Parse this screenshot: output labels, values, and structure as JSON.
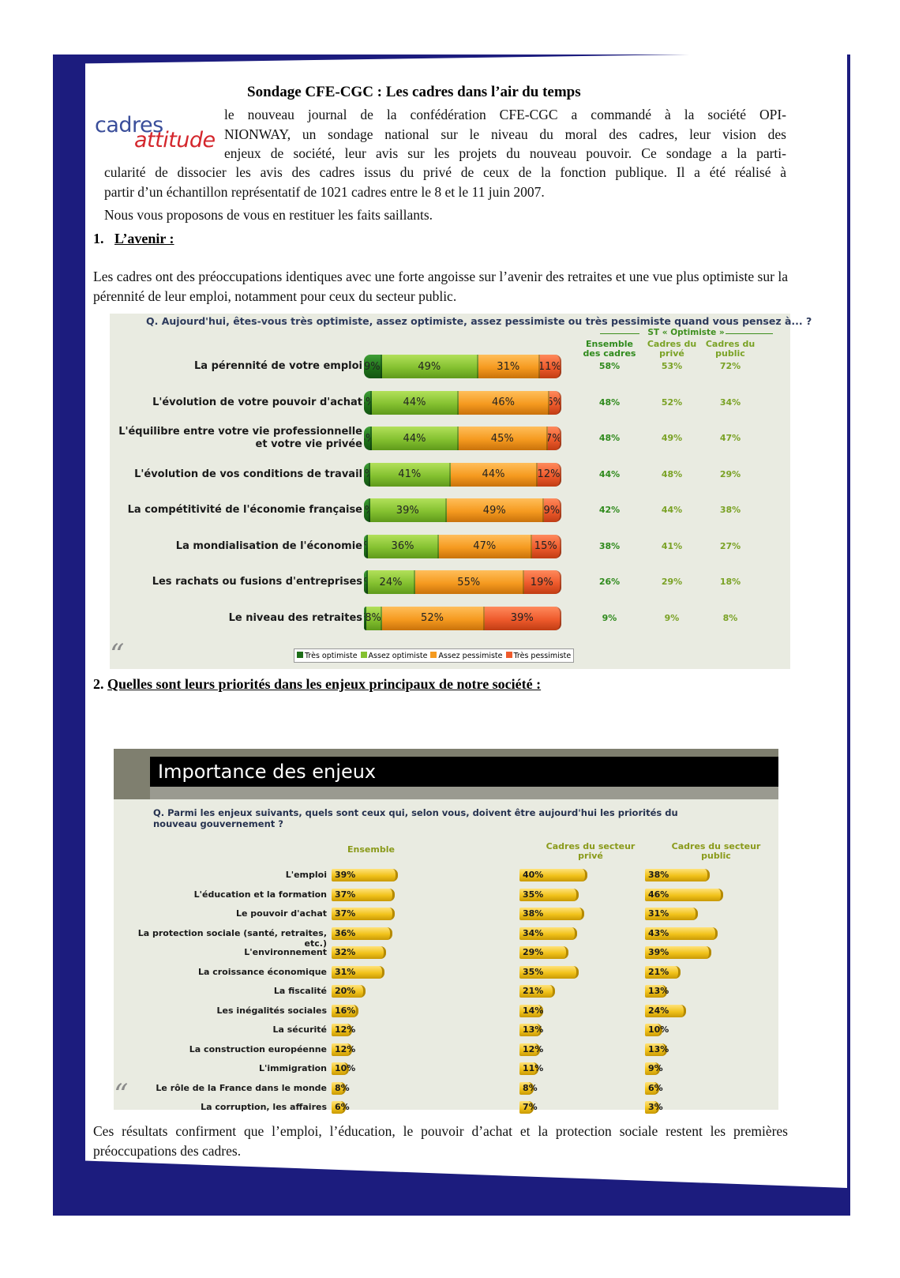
{
  "title": "Sondage CFE-CGC : Les cadres dans l’air du temps",
  "logo": {
    "part1": "cadres",
    "part2": "attitude"
  },
  "intro_lines": [
    "le nouveau journal de la confédération CFE-CGC a  commandé à la société OPI-",
    "NIONWAY, un sondage national sur le niveau du moral des cadres, leur vision des",
    "enjeux de société, leur avis sur les projets du nouveau pouvoir. Ce sondage a la parti-",
    "cularité de dissocier les avis des cadres issus du privé de ceux de la fonction publique. Il a été réalisé à",
    "partir d’un échantillon représentatif de 1021 cadres entre le 8 et le  11  juin  2007."
  ],
  "intro_after": "Nous vous proposons de vous en restituer les faits saillants.",
  "section1": {
    "number": "1.",
    "title": "L’avenir :",
    "text": "Les cadres ont des préoccupations identiques avec une forte angoisse sur l’avenir des retraites et une vue plus optimiste sur la pérennité de leur emploi, notamment pour ceux du secteur public."
  },
  "section2": {
    "number": "2.",
    "title": "Quelles sont leurs priorités dans les enjeux principaux  de notre société :"
  },
  "conclusion": "Ces résultats confirment que l’emploi, l’éducation, le pouvoir d’achat et la protection sociale restent les premières préoccupations des cadres.",
  "chart_data": [
    {
      "type": "bar",
      "title": "Q. Aujourd'hui, êtes-vous très optimiste, assez optimiste, assez pessimiste ou très pessimiste quand vous pensez à... ?",
      "st_header": "ST « Optimiste »",
      "st_columns": [
        "Ensemble des cadres",
        "Cadres du privé",
        "Cadres du public"
      ],
      "st_colors": [
        "#2f8a1c",
        "#7aa225",
        "#7aa225"
      ],
      "categories": [
        "La pérennité de votre emploi",
        "L'évolution de votre pouvoir d'achat",
        "L'équilibre entre votre vie professionnelle et votre vie privée",
        "L'évolution de vos conditions de travail",
        "La compétitivité de l'économie française",
        "La mondialisation de l'économie",
        "Les rachats ou fusions d'entreprises",
        "Le niveau des retraites"
      ],
      "series": [
        {
          "name": "Très optimiste",
          "color": "#1d6e18",
          "values": [
            9,
            4,
            4,
            3,
            3,
            2,
            2,
            1
          ]
        },
        {
          "name": "Assez optimiste",
          "color": "#84c130",
          "values": [
            49,
            44,
            44,
            41,
            39,
            36,
            24,
            8
          ]
        },
        {
          "name": "Assez pessimiste",
          "color": "#f59a1f",
          "values": [
            31,
            46,
            45,
            44,
            49,
            47,
            55,
            52
          ]
        },
        {
          "name": "Très pessimiste",
          "color": "#ee5a2c",
          "values": [
            11,
            6,
            7,
            12,
            9,
            15,
            19,
            39
          ]
        }
      ],
      "st_values": [
        [
          "58%",
          "53%",
          "72%"
        ],
        [
          "48%",
          "52%",
          "34%"
        ],
        [
          "48%",
          "49%",
          "47%"
        ],
        [
          "44%",
          "48%",
          "29%"
        ],
        [
          "42%",
          "44%",
          "38%"
        ],
        [
          "38%",
          "41%",
          "27%"
        ],
        [
          "26%",
          "29%",
          "18%"
        ],
        [
          "9%",
          "9%",
          "8%"
        ]
      ],
      "legend_position": "bottom-center"
    },
    {
      "type": "bar",
      "title": "Importance des enjeux",
      "subtitle": "Q. Parmi les enjeux suivants, quels sont ceux qui, selon vous, doivent être aujourd'hui les priorités du nouveau gouvernement ?",
      "categories": [
        "L'emploi",
        "L'éducation et la formation",
        "Le pouvoir d'achat",
        "La protection sociale (santé, retraites, etc.)",
        "L'environnement",
        "La croissance économique",
        "La fiscalité",
        "Les inégalités sociales",
        "La sécurité",
        "La construction européenne",
        "L'immigration",
        "Le rôle de la France dans le monde",
        "La corruption, les affaires"
      ],
      "series": [
        {
          "name": "Ensemble",
          "values": [
            39,
            37,
            37,
            36,
            32,
            31,
            20,
            16,
            12,
            12,
            10,
            8,
            6
          ]
        },
        {
          "name": "Cadres du secteur privé",
          "values": [
            40,
            35,
            38,
            34,
            29,
            35,
            21,
            14,
            13,
            12,
            11,
            8,
            7
          ]
        },
        {
          "name": "Cadres du secteur public",
          "values": [
            38,
            46,
            31,
            43,
            39,
            21,
            13,
            24,
            10,
            13,
            9,
            6,
            3
          ]
        }
      ],
      "bar_color": "#f1c21a"
    }
  ]
}
